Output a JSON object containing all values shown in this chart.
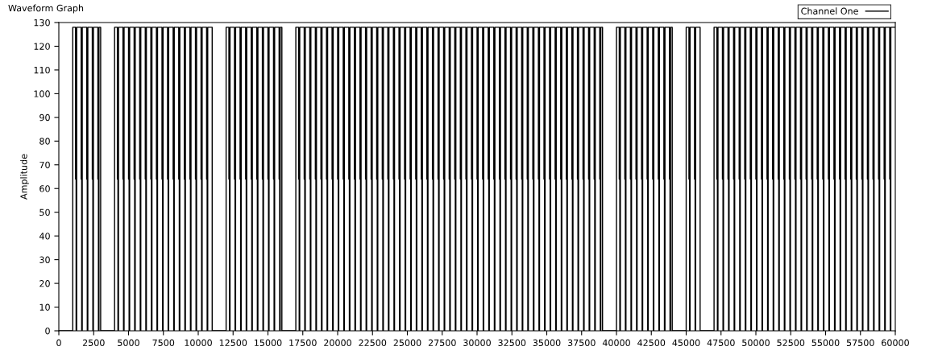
{
  "chart_data": {
    "type": "step",
    "title": "Waveform Graph",
    "ylabel": "Amplitude",
    "xlim": [
      0,
      60000
    ],
    "ylim": [
      0,
      130
    ],
    "xticks": [
      0,
      2500,
      5000,
      7500,
      10000,
      12500,
      15000,
      17500,
      20000,
      22500,
      25000,
      27500,
      30000,
      32500,
      35000,
      37500,
      40000,
      42500,
      45000,
      47500,
      50000,
      52500,
      55000,
      57500,
      60000
    ],
    "yticks": [
      0,
      10,
      20,
      30,
      40,
      50,
      60,
      70,
      80,
      90,
      100,
      110,
      120,
      130
    ],
    "grid": false,
    "legend": "top right",
    "marker": "none",
    "line_style": "solid",
    "series": [
      {
        "name": "Channel One",
        "color": "#000000",
        "x": [
          0,
          1000,
          1200,
          1240,
          1280,
          1600,
          1640,
          1680,
          2000,
          2040,
          2080,
          2400,
          2440,
          2480,
          2800,
          2840,
          2880,
          3000,
          4000,
          4200,
          4240,
          4280,
          4600,
          4640,
          4680,
          5000,
          5040,
          5080,
          5400,
          5440,
          5480,
          5800,
          5840,
          5880,
          6200,
          6240,
          6280,
          6600,
          6640,
          6680,
          7000,
          7040,
          7080,
          7400,
          7440,
          7480,
          7800,
          7840,
          7880,
          8200,
          8240,
          8280,
          8600,
          8640,
          8680,
          9000,
          9040,
          9080,
          9400,
          9440,
          9480,
          9800,
          9840,
          9880,
          10200,
          10240,
          10280,
          10600,
          10640,
          10680,
          11000,
          12000,
          12200,
          12240,
          12280,
          12600,
          12640,
          12680,
          13000,
          13040,
          13080,
          13400,
          13440,
          13480,
          13800,
          13840,
          13880,
          14200,
          14240,
          14280,
          14600,
          14640,
          14680,
          15000,
          15040,
          15080,
          15400,
          15440,
          15480,
          15800,
          15840,
          15880,
          16000,
          17000,
          17200,
          17240,
          17280,
          17600,
          17640,
          17680,
          18000,
          18040,
          18080,
          18400,
          18440,
          18480,
          18800,
          18840,
          18880,
          19200,
          19240,
          19280,
          19600,
          19640,
          19680,
          20000,
          20040,
          20080,
          20400,
          20440,
          20480,
          20800,
          20840,
          20880,
          21200,
          21240,
          21280,
          21600,
          21640,
          21680,
          22000,
          22040,
          22080,
          22400,
          22440,
          22480,
          22800,
          22840,
          22880,
          23200,
          23240,
          23280,
          23600,
          23640,
          23680,
          24000,
          24040,
          24080,
          24400,
          24440,
          24480,
          24800,
          24840,
          24880,
          25200,
          25240,
          25280,
          25600,
          25640,
          25680,
          26000,
          26040,
          26080,
          26400,
          26440,
          26480,
          26800,
          26840,
          26880,
          27200,
          27240,
          27280,
          27600,
          27640,
          27680,
          28000,
          28040,
          28080,
          28400,
          28440,
          28480,
          28800,
          28840,
          28880,
          29200,
          29240,
          29280,
          29600,
          29640,
          29680,
          30000,
          30040,
          30080,
          30400,
          30440,
          30480,
          30800,
          30840,
          30880,
          31200,
          31240,
          31280,
          31600,
          31640,
          31680,
          32000,
          32040,
          32080,
          32400,
          32440,
          32480,
          32800,
          32840,
          32880,
          33200,
          33240,
          33280,
          33600,
          33640,
          33680,
          34000,
          34040,
          34080,
          34400,
          34440,
          34480,
          34800,
          34840,
          34880,
          35200,
          35240,
          35280,
          35600,
          35640,
          35680,
          36000,
          36040,
          36080,
          36400,
          36440,
          36480,
          36800,
          36840,
          36880,
          37200,
          37240,
          37280,
          37600,
          37640,
          37680,
          38000,
          38040,
          38080,
          38400,
          38440,
          38480,
          38800,
          38840,
          38880,
          39000,
          40000,
          40200,
          40240,
          40280,
          40600,
          40640,
          40680,
          41000,
          41040,
          41080,
          41400,
          41440,
          41480,
          41800,
          41840,
          41880,
          42200,
          42240,
          42280,
          42600,
          42640,
          42680,
          43000,
          43040,
          43080,
          43400,
          43440,
          43480,
          43800,
          43840,
          43880,
          44000,
          45000,
          45200,
          45240,
          45280,
          45600,
          45640,
          45680,
          46000,
          47000,
          47200,
          47240,
          47280,
          47600,
          47640,
          47680,
          48000,
          48040,
          48080,
          48400,
          48440,
          48480,
          48800,
          48840,
          48880,
          49200,
          49240,
          49280,
          49600,
          49640,
          49680,
          50000,
          50040,
          50080,
          50400,
          50440,
          50480,
          50800,
          50840,
          50880,
          51200,
          51240,
          51280,
          51600,
          51640,
          51680,
          52000,
          52040,
          52080,
          52400,
          52440,
          52480,
          52800,
          52840,
          52880,
          53200,
          53240,
          53280,
          53600,
          53640,
          53680,
          54000,
          54040,
          54080,
          54400,
          54440,
          54480,
          54800,
          54840,
          54880,
          55200,
          55240,
          55280,
          55600,
          55640,
          55680,
          56000,
          56040,
          56080,
          56400,
          56440,
          56480,
          56800,
          56840,
          56880,
          57200,
          57240,
          57280,
          57600,
          57640,
          57680,
          58000,
          58040,
          58080,
          58400,
          58440,
          58480,
          58800,
          58840,
          58880,
          59200,
          59240,
          59280,
          59600,
          59640,
          59680,
          60000
        ],
        "values": [
          0,
          128,
          64,
          0,
          128,
          64,
          0,
          128,
          64,
          0,
          128,
          64,
          0,
          128,
          64,
          0,
          128,
          0,
          128,
          64,
          0,
          128,
          64,
          0,
          128,
          64,
          0,
          128,
          64,
          0,
          128,
          64,
          0,
          128,
          64,
          0,
          128,
          64,
          0,
          128,
          64,
          0,
          128,
          64,
          0,
          128,
          64,
          0,
          128,
          64,
          0,
          128,
          64,
          0,
          128,
          64,
          0,
          128,
          64,
          0,
          128,
          64,
          0,
          128,
          64,
          0,
          128,
          64,
          0,
          128,
          0,
          128,
          64,
          0,
          128,
          64,
          0,
          128,
          64,
          0,
          128,
          64,
          0,
          128,
          64,
          0,
          128,
          64,
          0,
          128,
          64,
          0,
          128,
          64,
          0,
          128,
          64,
          0,
          128,
          64,
          0,
          128,
          0,
          128,
          64,
          0,
          128,
          64,
          0,
          128,
          64,
          0,
          128,
          64,
          0,
          128,
          64,
          0,
          128,
          64,
          0,
          128,
          64,
          0,
          128,
          64,
          0,
          128,
          64,
          0,
          128,
          64,
          0,
          128,
          64,
          0,
          128,
          64,
          0,
          128,
          64,
          0,
          128,
          64,
          0,
          128,
          64,
          0,
          128,
          64,
          0,
          128,
          64,
          0,
          128,
          64,
          0,
          128,
          64,
          0,
          128,
          64,
          0,
          128,
          64,
          0,
          128,
          64,
          0,
          128,
          64,
          0,
          128,
          64,
          0,
          128,
          64,
          0,
          128,
          64,
          0,
          128,
          64,
          0,
          128,
          64,
          0,
          128,
          64,
          0,
          128,
          64,
          0,
          128,
          64,
          0,
          128,
          64,
          0,
          128,
          64,
          0,
          128,
          64,
          0,
          128,
          64,
          0,
          128,
          64,
          0,
          128,
          64,
          0,
          128,
          64,
          0,
          128,
          64,
          0,
          128,
          64,
          0,
          128,
          64,
          0,
          128,
          64,
          0,
          128,
          64,
          0,
          128,
          64,
          0,
          128,
          64,
          0,
          128,
          64,
          0,
          128,
          64,
          0,
          128,
          64,
          0,
          128,
          64,
          0,
          128,
          64,
          0,
          128,
          64,
          0,
          128,
          64,
          0,
          128,
          64,
          0,
          128,
          64,
          0,
          128,
          64,
          0,
          128,
          0,
          128,
          64,
          0,
          128,
          64,
          0,
          128,
          64,
          0,
          128,
          64,
          0,
          128,
          64,
          0,
          128,
          64,
          0,
          128,
          64,
          0,
          128,
          64,
          0,
          128,
          64,
          0,
          128,
          64,
          0,
          128,
          0,
          128,
          64,
          0,
          128,
          64,
          0,
          128,
          0,
          128,
          64,
          0,
          128,
          64,
          0,
          128,
          64,
          0,
          128,
          64,
          0,
          128,
          64,
          0,
          128,
          64,
          0,
          128,
          64,
          0,
          128,
          64,
          0,
          128,
          64,
          0,
          128,
          64,
          0,
          128,
          64,
          0,
          128,
          64,
          0,
          128,
          64,
          0,
          128,
          64,
          0,
          128,
          64,
          0,
          128,
          64,
          0,
          128,
          64,
          0,
          128,
          64,
          0,
          128,
          64,
          0,
          128,
          64,
          0,
          128,
          64,
          0,
          128,
          64,
          0,
          128,
          64,
          0,
          128,
          64,
          0,
          128,
          64,
          0,
          128,
          64,
          0,
          128,
          64,
          0,
          128,
          64,
          0,
          128,
          64,
          0,
          128,
          64,
          0,
          128,
          64,
          0,
          128,
          64,
          0,
          128,
          128
        ]
      }
    ]
  }
}
